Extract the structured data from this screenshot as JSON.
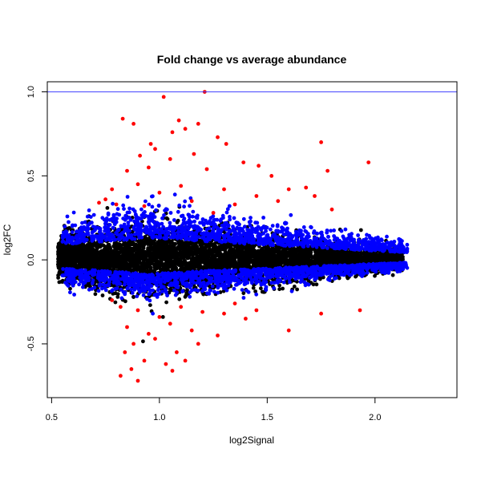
{
  "chart_data": {
    "type": "scatter",
    "title": "Fold change vs average abundance",
    "xlabel": "log2Signal",
    "ylabel": "log2FC",
    "xlim": [
      0.48,
      2.38
    ],
    "ylim": [
      -0.82,
      1.06
    ],
    "x_ticks": [
      0.5,
      1.0,
      1.5,
      2.0
    ],
    "x_tick_labels": [
      "0.5",
      "1.0",
      "1.5",
      "2.0"
    ],
    "y_ticks": [
      -0.5,
      0.0,
      0.5,
      1.0
    ],
    "y_tick_labels": [
      "-0.5",
      "0.0",
      "0.5",
      "1.0"
    ],
    "grid": false,
    "reference_line": {
      "y": 1.0,
      "color": "#4040ff"
    },
    "colors": {
      "black": "#000000",
      "blue": "#0000ff",
      "red": "#ff0000"
    },
    "series": [
      {
        "color": "#ff0000",
        "points": [
          [
            0.83,
            0.84
          ],
          [
            0.88,
            0.81
          ],
          [
            1.02,
            0.97
          ],
          [
            1.06,
            0.76
          ],
          [
            1.09,
            0.83
          ],
          [
            1.12,
            0.78
          ],
          [
            1.21,
            1.0
          ],
          [
            1.18,
            0.81
          ],
          [
            0.96,
            0.69
          ],
          [
            0.98,
            0.66
          ],
          [
            1.27,
            0.73
          ],
          [
            1.31,
            0.69
          ],
          [
            1.75,
            0.7
          ],
          [
            1.97,
            0.58
          ],
          [
            1.78,
            0.53
          ],
          [
            1.46,
            0.56
          ],
          [
            0.91,
            0.62
          ],
          [
            1.05,
            0.6
          ],
          [
            1.16,
            0.63
          ],
          [
            0.95,
            0.55
          ],
          [
            0.85,
            0.53
          ],
          [
            1.22,
            0.54
          ],
          [
            1.39,
            0.58
          ],
          [
            1.52,
            0.5
          ],
          [
            0.78,
            0.42
          ],
          [
            0.9,
            0.45
          ],
          [
            1.0,
            0.4
          ],
          [
            1.1,
            0.44
          ],
          [
            1.3,
            0.42
          ],
          [
            1.45,
            0.38
          ],
          [
            1.6,
            0.42
          ],
          [
            1.72,
            0.38
          ],
          [
            1.68,
            0.43
          ],
          [
            0.75,
            0.36
          ],
          [
            0.8,
            0.33
          ],
          [
            0.93,
            0.32
          ],
          [
            1.15,
            0.35
          ],
          [
            1.35,
            0.33
          ],
          [
            1.55,
            0.35
          ],
          [
            1.8,
            0.3
          ],
          [
            0.72,
            0.34
          ],
          [
            1.25,
            0.28
          ],
          [
            0.82,
            -0.28
          ],
          [
            0.9,
            -0.3
          ],
          [
            1.0,
            -0.34
          ],
          [
            1.1,
            -0.28
          ],
          [
            1.2,
            -0.31
          ],
          [
            0.85,
            -0.4
          ],
          [
            0.95,
            -0.44
          ],
          [
            1.05,
            -0.38
          ],
          [
            1.15,
            -0.42
          ],
          [
            0.88,
            -0.5
          ],
          [
            0.98,
            -0.47
          ],
          [
            1.08,
            -0.55
          ],
          [
            1.18,
            -0.5
          ],
          [
            0.84,
            -0.55
          ],
          [
            0.93,
            -0.6
          ],
          [
            1.03,
            -0.62
          ],
          [
            0.87,
            -0.65
          ],
          [
            1.12,
            -0.6
          ],
          [
            0.82,
            -0.69
          ],
          [
            0.9,
            -0.72
          ],
          [
            1.06,
            -0.66
          ],
          [
            1.27,
            -0.45
          ],
          [
            1.4,
            -0.35
          ],
          [
            1.45,
            -0.3
          ],
          [
            1.6,
            -0.42
          ],
          [
            1.75,
            -0.32
          ],
          [
            1.93,
            -0.3
          ],
          [
            1.3,
            -0.32
          ],
          [
            0.78,
            -0.24
          ],
          [
            1.35,
            -0.26
          ]
        ]
      },
      {
        "color": "#0000ff",
        "points": []
      },
      {
        "color": "#000000",
        "points": []
      }
    ]
  }
}
